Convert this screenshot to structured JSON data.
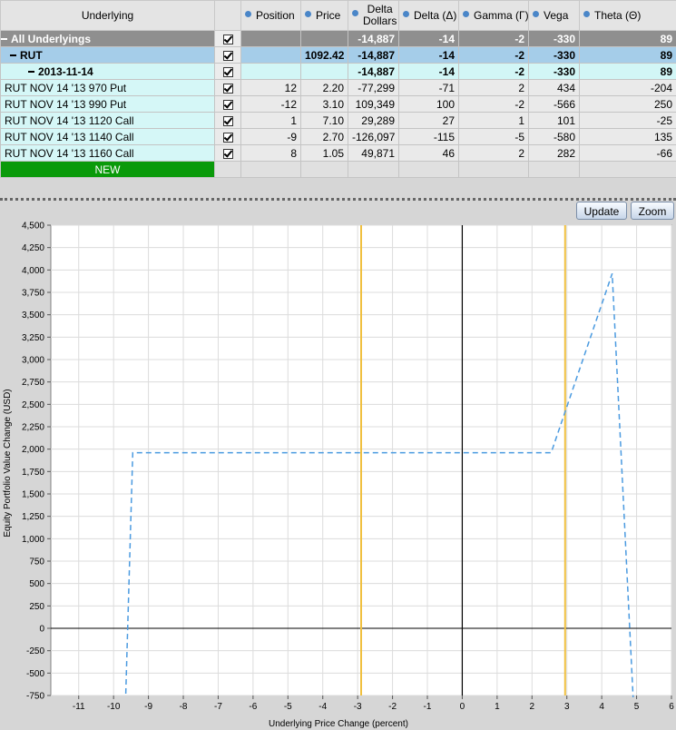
{
  "table": {
    "headers": {
      "underlying": "Underlying",
      "position": "Position",
      "price": "Price",
      "delta_dollars_1": "Delta",
      "delta_dollars_2": "Dollars",
      "delta": "Delta (Δ)",
      "gamma": "Gamma (Γ)",
      "vega": "Vega",
      "theta": "Theta (Θ)"
    },
    "rows": [
      {
        "name": "All Underlyings",
        "position": "",
        "price": "",
        "delta_dollars": "-14,887",
        "delta": "-14",
        "gamma": "-2",
        "vega": "-330",
        "theta": "89"
      },
      {
        "name": "RUT",
        "position": "",
        "price": "1092.42",
        "delta_dollars": "-14,887",
        "delta": "-14",
        "gamma": "-2",
        "vega": "-330",
        "theta": "89"
      },
      {
        "name": "2013-11-14",
        "position": "",
        "price": "",
        "delta_dollars": "-14,887",
        "delta": "-14",
        "gamma": "-2",
        "vega": "-330",
        "theta": "89"
      },
      {
        "name": "RUT NOV 14 '13 970 Put",
        "position": "12",
        "price": "2.20",
        "delta_dollars": "-77,299",
        "delta": "-71",
        "gamma": "2",
        "vega": "434",
        "theta": "-204"
      },
      {
        "name": "RUT NOV 14 '13 990 Put",
        "position": "-12",
        "price": "3.10",
        "delta_dollars": "109,349",
        "delta": "100",
        "gamma": "-2",
        "vega": "-566",
        "theta": "250"
      },
      {
        "name": "RUT NOV 14 '13 1120 Call",
        "position": "1",
        "price": "7.10",
        "delta_dollars": "29,289",
        "delta": "27",
        "gamma": "1",
        "vega": "101",
        "theta": "-25"
      },
      {
        "name": "RUT NOV 14 '13 1140 Call",
        "position": "-9",
        "price": "2.70",
        "delta_dollars": "-126,097",
        "delta": "-115",
        "gamma": "-5",
        "vega": "-580",
        "theta": "135"
      },
      {
        "name": "RUT NOV 14 '13 1160 Call",
        "position": "8",
        "price": "1.05",
        "delta_dollars": "49,871",
        "delta": "46",
        "gamma": "2",
        "vega": "282",
        "theta": "-66"
      }
    ],
    "new_label": "NEW"
  },
  "buttons": {
    "update": "Update",
    "zoom": "Zoom"
  },
  "colors": {
    "payoff_line": "#4a9ae0",
    "vertical_markers": "#f0c040",
    "new_row": "#0a9a0a"
  },
  "chart_data": {
    "type": "line",
    "xlabel": "Underlying Price Change (percent)",
    "ylabel": "Equity Portfolio Value Change (USD)",
    "xlim": [
      -11.8,
      6
    ],
    "ylim": [
      -750,
      4500
    ],
    "x_ticks": [
      -11,
      -10,
      -9,
      -8,
      -7,
      -6,
      -5,
      -4,
      -3,
      -2,
      -1,
      0,
      1,
      2,
      3,
      4,
      5,
      6
    ],
    "y_ticks": [
      -750,
      -500,
      -250,
      0,
      250,
      500,
      750,
      1000,
      1250,
      1500,
      1750,
      2000,
      2250,
      2500,
      2750,
      3000,
      3250,
      3500,
      3750,
      4000,
      4250,
      4500
    ],
    "grid": true,
    "vertical_lines": [
      -2.9,
      2.95
    ],
    "series": [
      {
        "line_style": "dashed",
        "points": [
          {
            "x": -9.65,
            "y": -730
          },
          {
            "x": -9.45,
            "y": 1960
          },
          {
            "x": 2.55,
            "y": 1960
          },
          {
            "x": 4.3,
            "y": 3960
          },
          {
            "x": 4.9,
            "y": -770
          }
        ]
      }
    ]
  }
}
